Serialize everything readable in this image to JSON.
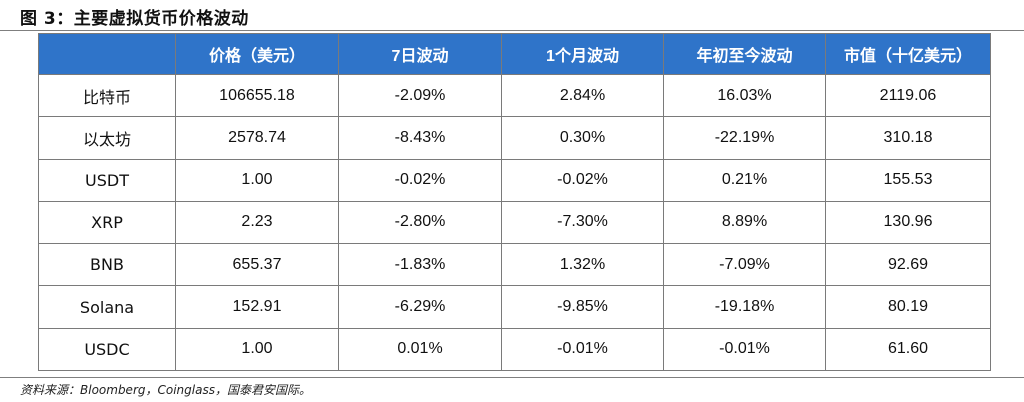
{
  "title": "图 3：主要虚拟货币价格波动",
  "table": {
    "headers": [
      "",
      "价格（美元）",
      "7日波动",
      "1个月波动",
      "年初至今波动",
      "市值（十亿美元）"
    ],
    "rows": [
      [
        "比特币",
        "106655.18",
        "-2.09%",
        "2.84%",
        "16.03%",
        "2119.06"
      ],
      [
        "以太坊",
        "2578.74",
        "-8.43%",
        "0.30%",
        "-22.19%",
        "310.18"
      ],
      [
        "USDT",
        "1.00",
        "-0.02%",
        "-0.02%",
        "0.21%",
        "155.53"
      ],
      [
        "XRP",
        "2.23",
        "-2.80%",
        "-7.30%",
        "8.89%",
        "130.96"
      ],
      [
        "BNB",
        "655.37",
        "-1.83%",
        "1.32%",
        "-7.09%",
        "92.69"
      ],
      [
        "Solana",
        "152.91",
        "-6.29%",
        "-9.85%",
        "-19.18%",
        "80.19"
      ],
      [
        "USDC",
        "1.00",
        "0.01%",
        "-0.01%",
        "-0.01%",
        "61.60"
      ]
    ]
  },
  "source": "资料来源：Bloomberg，Coinglass，国泰君安国际。",
  "colors": {
    "header_bg": "#2f74c9",
    "header_text": "#ffffff",
    "border": "#7a7a7a"
  }
}
